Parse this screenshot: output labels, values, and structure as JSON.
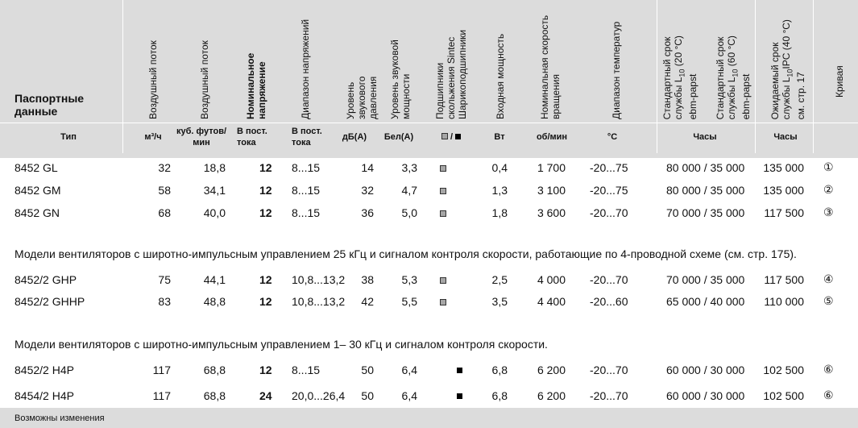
{
  "header": {
    "title": "Паспортные данные",
    "col_headers": [
      "Воздушный поток",
      "Воздушный поток",
      "Номинальное напряжение",
      "Диапазон напряжений",
      "Уровень звукового давления",
      "Уровень звуковой мощности",
      "Подшипники скольжения Sintec Шарикоподшипники",
      "Входная мощность",
      "Номинальная скорость вращения",
      "Диапазон температур",
      "Стандартный срок службы L10 (20 °C) ebm-papst",
      "Стандартный срок службы L10 (60 °C) ebm-papst",
      "Ожидаемый срок службы L10IPC (40 °C) см. стр. 17",
      "Кривая"
    ],
    "units": {
      "type": "Тип",
      "flow1": "м³/ч",
      "flow2": "куб. футов/ мин",
      "nom_voltage": "В пост. тока",
      "voltage_range": "В пост. тока",
      "spl": "дБ(A)",
      "swl": "Бел(A)",
      "bearing": "■ / ■",
      "power": "Вт",
      "speed": "об/мин",
      "temp": "°C",
      "life_std": "Часы",
      "life_exp": "Часы"
    }
  },
  "groups": [
    {
      "rows": [
        {
          "type": "8452 GL",
          "flow_m3h": "32",
          "flow_cfm": "18,8",
          "voltage": "12",
          "vrange": "8...15",
          "spl": "14",
          "swl": "3,3",
          "bearing": "sintec",
          "power": "0,4",
          "speed": "1 700",
          "temp": "-20...75",
          "life": "80 000 / 35 000",
          "life_ipc": "135 000",
          "curve": "①"
        },
        {
          "type": "8452 GM",
          "flow_m3h": "58",
          "flow_cfm": "34,1",
          "voltage": "12",
          "vrange": "8...15",
          "spl": "32",
          "swl": "4,7",
          "bearing": "sintec",
          "power": "1,3",
          "speed": "3 100",
          "temp": "-20...75",
          "life": "80 000 / 35 000",
          "life_ipc": "135 000",
          "curve": "②"
        },
        {
          "type": "8452 GN",
          "flow_m3h": "68",
          "flow_cfm": "40,0",
          "voltage": "12",
          "vrange": "8...15",
          "spl": "36",
          "swl": "5,0",
          "bearing": "sintec",
          "power": "1,8",
          "speed": "3 600",
          "temp": "-20...70",
          "life": "70 000 / 35 000",
          "life_ipc": "117 500",
          "curve": "③"
        }
      ]
    },
    {
      "note": "Модели вентиляторов с широтно-импульсным управлением 25 кГц и сигналом контроля скорости, работающие по 4-проводной схеме (см. стр. 175).",
      "rows": [
        {
          "type": "8452/2 GHP",
          "flow_m3h": "75",
          "flow_cfm": "44,1",
          "voltage": "12",
          "vrange": "10,8...13,2",
          "spl": "38",
          "swl": "5,3",
          "bearing": "sintec",
          "power": "2,5",
          "speed": "4 000",
          "temp": "-20...70",
          "life": "70 000 / 35 000",
          "life_ipc": "117 500",
          "curve": "④"
        },
        {
          "type": "8452/2 GHHP",
          "flow_m3h": "83",
          "flow_cfm": "48,8",
          "voltage": "12",
          "vrange": "10,8...13,2",
          "spl": "42",
          "swl": "5,5",
          "bearing": "sintec",
          "power": "3,5",
          "speed": "4 400",
          "temp": "-20...60",
          "life": "65 000 / 40 000",
          "life_ipc": "110 000",
          "curve": "⑤"
        }
      ]
    },
    {
      "note": "Модели вентиляторов с широтно-импульсным управлением 1– 30 кГц и сигналом контроля скорости.",
      "rows": [
        {
          "type": "8452/2 H4P",
          "flow_m3h": "117",
          "flow_cfm": "68,8",
          "voltage": "12",
          "vrange": "8...15",
          "spl": "50",
          "swl": "6,4",
          "bearing": "ball",
          "power": "6,8",
          "speed": "6 200",
          "temp": "-20...70",
          "life": "60 000 / 30 000",
          "life_ipc": "102 500",
          "curve": "⑥"
        },
        {
          "type": "8454/2 H4P",
          "flow_m3h": "117",
          "flow_cfm": "68,8",
          "voltage": "24",
          "vrange": "20,0...26,4",
          "spl": "50",
          "swl": "6,4",
          "bearing": "ball",
          "power": "6,8",
          "speed": "6 200",
          "temp": "-20...70",
          "life": "60 000 / 30 000",
          "life_ipc": "102 500",
          "curve": "⑥"
        }
      ]
    }
  ],
  "footer": "Возможны изменения",
  "colors": {
    "header_bg": "#dcdcdc",
    "row_bg": "#ffffff",
    "sintec": "#a6a6a6",
    "ball": "#000000"
  }
}
